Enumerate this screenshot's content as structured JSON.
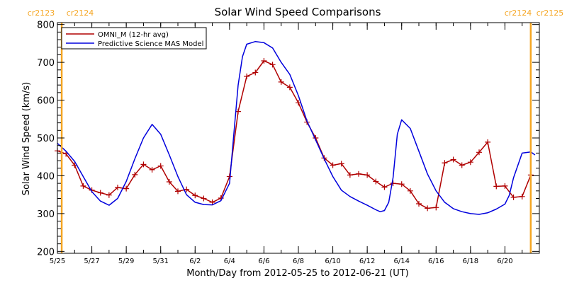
{
  "chart_data": {
    "type": "line",
    "title": "Solar Wind Speed Comparisons",
    "xlabel": "Month/Day from 2012-05-25 to 2012-06-21 (UT)",
    "ylabel": "Solar Wind Speed (km/s)",
    "ylim": [
      195,
      805
    ],
    "xlim": [
      "2012-05-25",
      "2012-06-22"
    ],
    "yticks": [
      200,
      300,
      400,
      500,
      600,
      700,
      800
    ],
    "xticks": [
      {
        "date": "2012-05-25",
        "label": "5/25"
      },
      {
        "date": "2012-05-27",
        "label": "5/27"
      },
      {
        "date": "2012-05-29",
        "label": "5/29"
      },
      {
        "date": "2012-05-31",
        "label": "5/31"
      },
      {
        "date": "2012-06-02",
        "label": "6/2"
      },
      {
        "date": "2012-06-04",
        "label": "6/4"
      },
      {
        "date": "2012-06-06",
        "label": "6/6"
      },
      {
        "date": "2012-06-08",
        "label": "6/8"
      },
      {
        "date": "2012-06-10",
        "label": "6/10"
      },
      {
        "date": "2012-06-12",
        "label": "6/12"
      },
      {
        "date": "2012-06-14",
        "label": "6/14"
      },
      {
        "date": "2012-06-16",
        "label": "6/16"
      },
      {
        "date": "2012-06-18",
        "label": "6/18"
      },
      {
        "date": "2012-06-20",
        "label": "6/20"
      }
    ],
    "carrington_markers": [
      {
        "date": "2012-05-25 06:00",
        "left_label": "cr2123",
        "right_label": "cr2124"
      },
      {
        "date": "2012-06-21 12:00",
        "left_label": "cr2124",
        "right_label": "cr2125"
      }
    ],
    "marker_color": "#f5a623",
    "legend_position": "top-left",
    "series": [
      {
        "name": "OMNI_M (12-hr avg)",
        "color": "#b00000",
        "marker": "plus",
        "points": [
          [
            "2012-05-25 00:00",
            466
          ],
          [
            "2012-05-25 12:00",
            458
          ],
          [
            "2012-05-26 00:00",
            428
          ],
          [
            "2012-05-26 12:00",
            373
          ],
          [
            "2012-05-27 00:00",
            362
          ],
          [
            "2012-05-27 12:00",
            355
          ],
          [
            "2012-05-28 00:00",
            349
          ],
          [
            "2012-05-28 12:00",
            369
          ],
          [
            "2012-05-29 00:00",
            366
          ],
          [
            "2012-05-29 12:00",
            403
          ],
          [
            "2012-05-30 00:00",
            430
          ],
          [
            "2012-05-30 12:00",
            416
          ],
          [
            "2012-05-31 00:00",
            426
          ],
          [
            "2012-05-31 12:00",
            384
          ],
          [
            "2012-06-01 00:00",
            359
          ],
          [
            "2012-06-01 12:00",
            364
          ],
          [
            "2012-06-02 00:00",
            348
          ],
          [
            "2012-06-02 12:00",
            340
          ],
          [
            "2012-06-03 00:00",
            330
          ],
          [
            "2012-06-03 12:00",
            341
          ],
          [
            "2012-06-04 00:00",
            398
          ],
          [
            "2012-06-04 12:00",
            570
          ],
          [
            "2012-06-05 00:00",
            663
          ],
          [
            "2012-06-05 12:00",
            673
          ],
          [
            "2012-06-06 00:00",
            704
          ],
          [
            "2012-06-06 12:00",
            694
          ],
          [
            "2012-06-07 00:00",
            648
          ],
          [
            "2012-06-07 12:00",
            634
          ],
          [
            "2012-06-08 00:00",
            593
          ],
          [
            "2012-06-08 12:00",
            542
          ],
          [
            "2012-06-09 00:00",
            500
          ],
          [
            "2012-06-09 12:00",
            447
          ],
          [
            "2012-06-10 00:00",
            428
          ],
          [
            "2012-06-10 12:00",
            432
          ],
          [
            "2012-06-11 00:00",
            402
          ],
          [
            "2012-06-11 12:00",
            405
          ],
          [
            "2012-06-12 00:00",
            402
          ],
          [
            "2012-06-12 12:00",
            385
          ],
          [
            "2012-06-13 00:00",
            370
          ],
          [
            "2012-06-13 12:00",
            380
          ],
          [
            "2012-06-14 00:00",
            378
          ],
          [
            "2012-06-14 12:00",
            360
          ],
          [
            "2012-06-15 00:00",
            326
          ],
          [
            "2012-06-15 12:00",
            314
          ],
          [
            "2012-06-16 00:00",
            316
          ],
          [
            "2012-06-16 12:00",
            434
          ],
          [
            "2012-06-17 00:00",
            443
          ],
          [
            "2012-06-17 12:00",
            428
          ],
          [
            "2012-06-18 00:00",
            436
          ],
          [
            "2012-06-18 12:00",
            462
          ],
          [
            "2012-06-19 00:00",
            489
          ],
          [
            "2012-06-19 12:00",
            372
          ],
          [
            "2012-06-20 00:00",
            373
          ],
          [
            "2012-06-20 12:00",
            343
          ],
          [
            "2012-06-21 00:00",
            345
          ],
          [
            "2012-06-21 12:00",
            402
          ]
        ]
      },
      {
        "name": "Predictive Science MAS Model",
        "color": "#0000dd",
        "marker": "none",
        "points": [
          [
            "2012-05-25 00:00",
            486
          ],
          [
            "2012-05-25 12:00",
            465
          ],
          [
            "2012-05-26 00:00",
            438
          ],
          [
            "2012-05-26 12:00",
            398
          ],
          [
            "2012-05-27 00:00",
            358
          ],
          [
            "2012-05-27 12:00",
            333
          ],
          [
            "2012-05-28 00:00",
            322
          ],
          [
            "2012-05-28 12:00",
            340
          ],
          [
            "2012-05-29 00:00",
            385
          ],
          [
            "2012-05-29 12:00",
            445
          ],
          [
            "2012-05-30 00:00",
            500
          ],
          [
            "2012-05-30 12:00",
            536
          ],
          [
            "2012-05-31 00:00",
            510
          ],
          [
            "2012-05-31 12:00",
            455
          ],
          [
            "2012-06-01 00:00",
            398
          ],
          [
            "2012-06-01 12:00",
            350
          ],
          [
            "2012-06-02 00:00",
            330
          ],
          [
            "2012-06-02 12:00",
            324
          ],
          [
            "2012-06-03 00:00",
            323
          ],
          [
            "2012-06-03 12:00",
            334
          ],
          [
            "2012-06-04 00:00",
            380
          ],
          [
            "2012-06-04 06:00",
            510
          ],
          [
            "2012-06-04 12:00",
            640
          ],
          [
            "2012-06-04 18:00",
            715
          ],
          [
            "2012-06-05 00:00",
            748
          ],
          [
            "2012-06-05 12:00",
            755
          ],
          [
            "2012-06-06 00:00",
            752
          ],
          [
            "2012-06-06 12:00",
            738
          ],
          [
            "2012-06-07 00:00",
            700
          ],
          [
            "2012-06-07 12:00",
            668
          ],
          [
            "2012-06-08 00:00",
            612
          ],
          [
            "2012-06-08 12:00",
            545
          ],
          [
            "2012-06-09 00:00",
            495
          ],
          [
            "2012-06-09 12:00",
            445
          ],
          [
            "2012-06-10 00:00",
            398
          ],
          [
            "2012-06-10 12:00",
            362
          ],
          [
            "2012-06-11 00:00",
            345
          ],
          [
            "2012-06-11 12:00",
            333
          ],
          [
            "2012-06-12 00:00",
            322
          ],
          [
            "2012-06-12 12:00",
            310
          ],
          [
            "2012-06-12 18:00",
            305
          ],
          [
            "2012-06-13 00:00",
            308
          ],
          [
            "2012-06-13 06:00",
            330
          ],
          [
            "2012-06-13 12:00",
            395
          ],
          [
            "2012-06-13 18:00",
            510
          ],
          [
            "2012-06-14 00:00",
            548
          ],
          [
            "2012-06-14 12:00",
            525
          ],
          [
            "2012-06-15 00:00",
            465
          ],
          [
            "2012-06-15 12:00",
            405
          ],
          [
            "2012-06-16 00:00",
            360
          ],
          [
            "2012-06-16 12:00",
            330
          ],
          [
            "2012-06-17 00:00",
            313
          ],
          [
            "2012-06-17 12:00",
            305
          ],
          [
            "2012-06-18 00:00",
            300
          ],
          [
            "2012-06-18 12:00",
            298
          ],
          [
            "2012-06-19 00:00",
            302
          ],
          [
            "2012-06-19 12:00",
            312
          ],
          [
            "2012-06-20 00:00",
            325
          ],
          [
            "2012-06-20 06:00",
            348
          ],
          [
            "2012-06-20 12:00",
            395
          ],
          [
            "2012-06-21 00:00",
            460
          ],
          [
            "2012-06-21 12:00",
            463
          ],
          [
            "2012-06-21 18:00",
            455
          ]
        ]
      }
    ]
  }
}
